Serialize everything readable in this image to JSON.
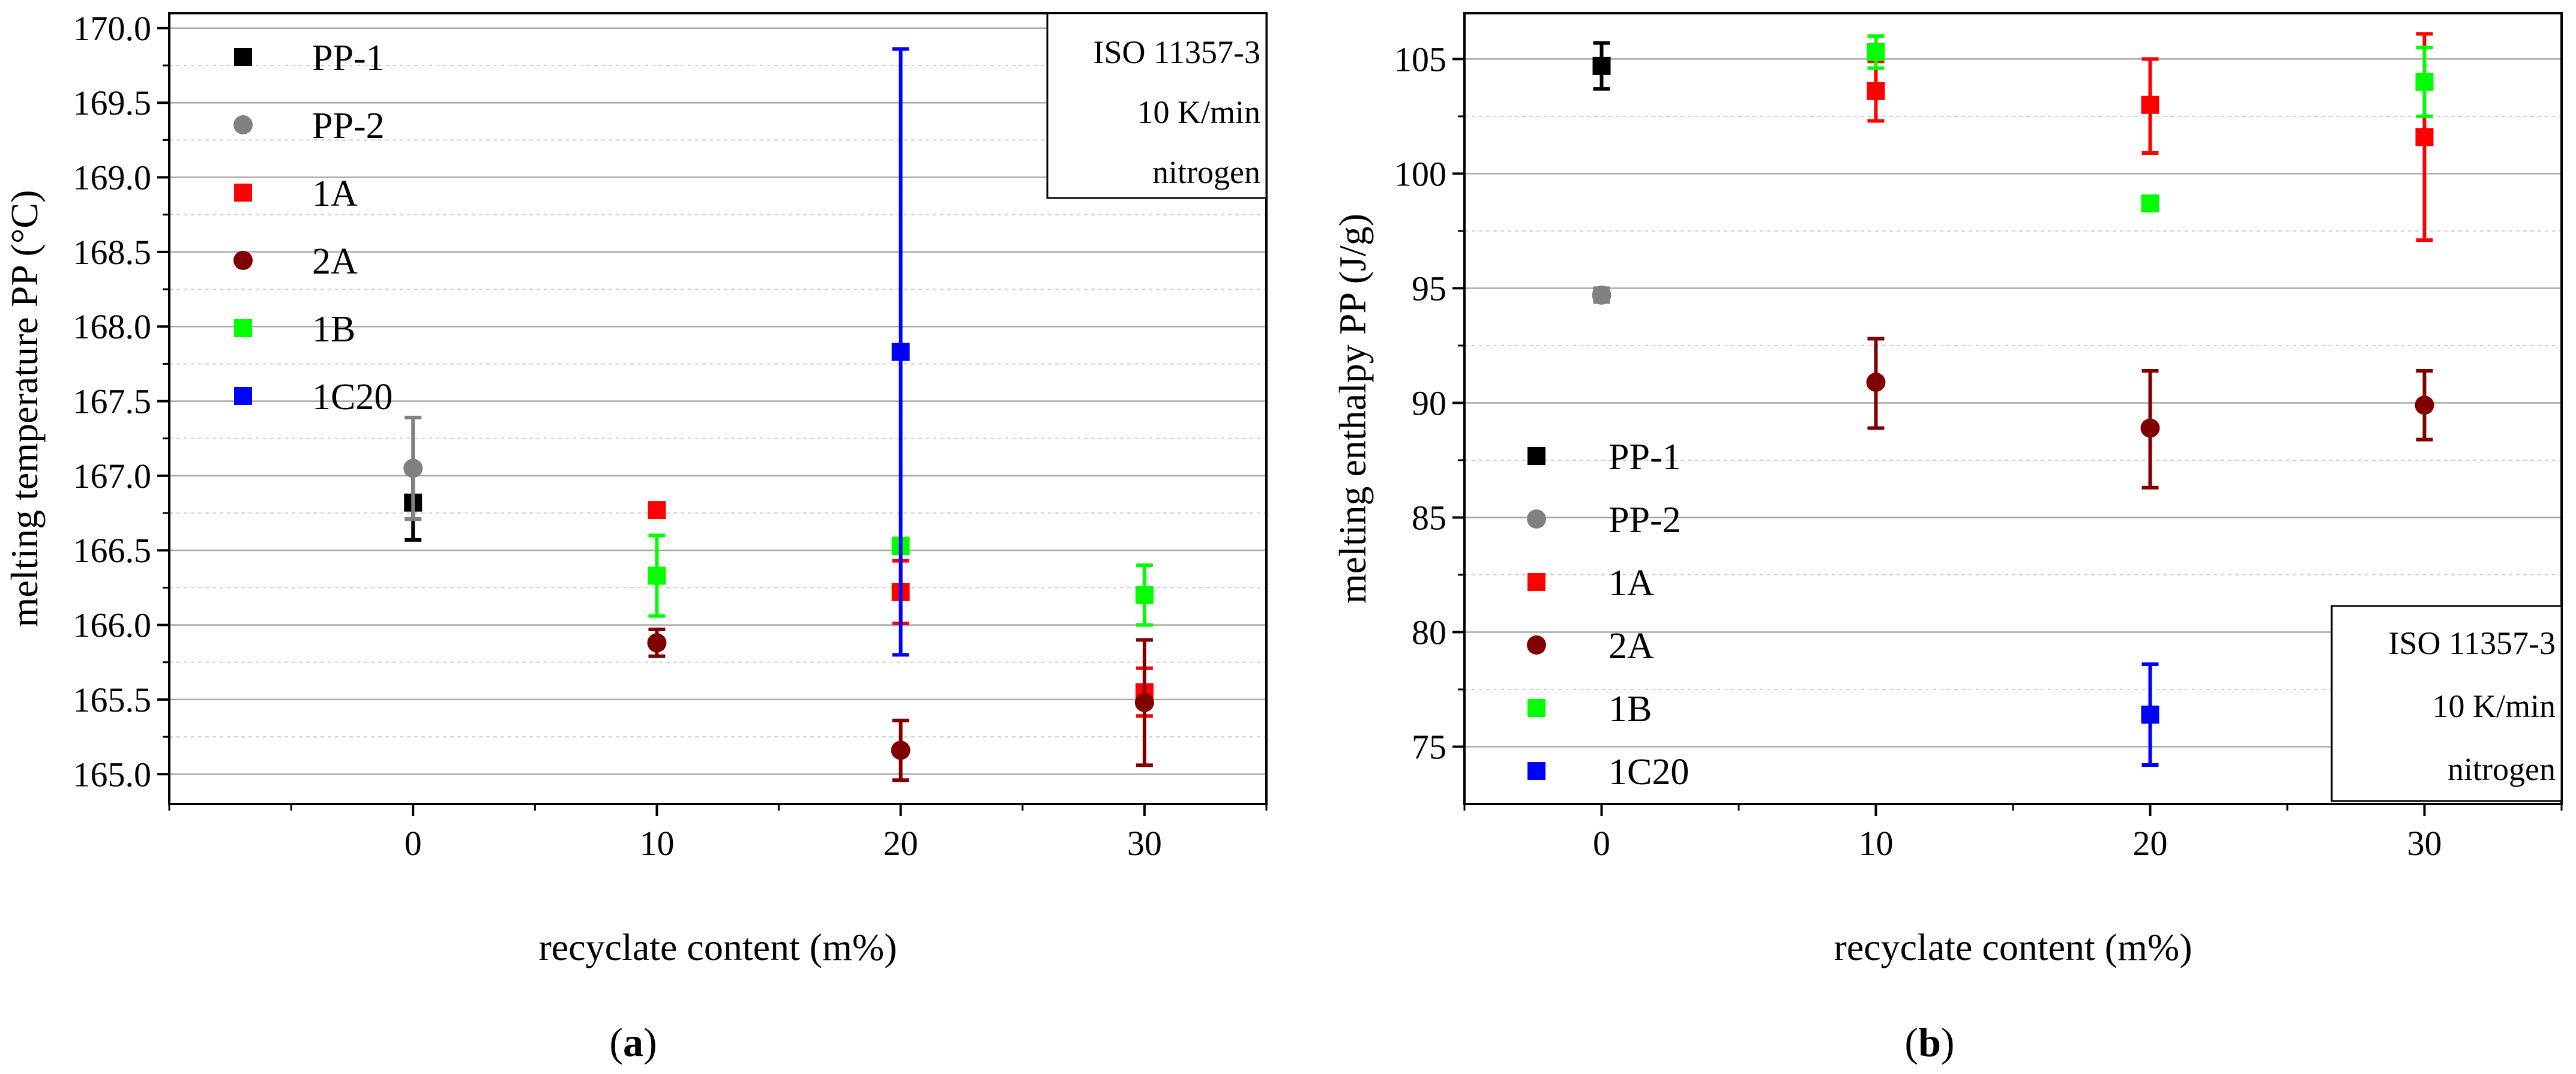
{
  "figure": {
    "captions": [
      "a",
      "b"
    ]
  },
  "chart_data": [
    {
      "type": "scatter",
      "title": "",
      "xlabel": "recyclate content (m%)",
      "ylabel": "melting temperature PP (°C)",
      "xlim": [
        -10,
        35
      ],
      "ylim": [
        164.8,
        170.1
      ],
      "xticks": [
        0,
        10,
        20,
        30
      ],
      "yticks": [
        165.0,
        165.5,
        166.0,
        166.5,
        167.0,
        167.5,
        168.0,
        168.5,
        169.0,
        169.5,
        170.0
      ],
      "ytick_labels": [
        "165.0",
        "165.5",
        "166.0",
        "166.5",
        "167.0",
        "167.5",
        "168.0",
        "168.5",
        "169.0",
        "169.5",
        "170.0"
      ],
      "grid": true,
      "legend_position": "top-left",
      "note": [
        "ISO 11357-3",
        "10 K/min",
        "nitrogen"
      ],
      "note_position": "top-right",
      "series": [
        {
          "name": "PP-1",
          "color": "#000000",
          "marker": "square",
          "points": [
            {
              "x": 0,
              "y": 166.82,
              "err_low": 166.57,
              "err_high": 167.07
            }
          ]
        },
        {
          "name": "PP-2",
          "color": "#808080",
          "marker": "circle",
          "points": [
            {
              "x": 0,
              "y": 167.05,
              "err_low": 166.71,
              "err_high": 167.39
            }
          ]
        },
        {
          "name": "1A",
          "color": "#ff0000",
          "marker": "square",
          "points": [
            {
              "x": 10,
              "y": 166.77,
              "err_low": 166.74,
              "err_high": 166.81
            },
            {
              "x": 20,
              "y": 166.22,
              "err_low": 166.01,
              "err_high": 166.43
            },
            {
              "x": 30,
              "y": 165.55,
              "err_low": 165.39,
              "err_high": 165.71
            }
          ]
        },
        {
          "name": "2A",
          "color": "#800000",
          "marker": "circle",
          "points": [
            {
              "x": 10,
              "y": 165.88,
              "err_low": 165.79,
              "err_high": 165.97
            },
            {
              "x": 20,
              "y": 165.16,
              "err_low": 164.96,
              "err_high": 165.36
            },
            {
              "x": 30,
              "y": 165.48,
              "err_low": 165.06,
              "err_high": 165.9
            }
          ]
        },
        {
          "name": "1B",
          "color": "#00ff00",
          "marker": "square",
          "points": [
            {
              "x": 10,
              "y": 166.33,
              "err_low": 166.06,
              "err_high": 166.6
            },
            {
              "x": 20,
              "y": 166.53,
              "err_low": 166.48,
              "err_high": 166.58
            },
            {
              "x": 30,
              "y": 166.2,
              "err_low": 166.0,
              "err_high": 166.4
            }
          ]
        },
        {
          "name": "1C20",
          "color": "#0000ff",
          "marker": "square",
          "points": [
            {
              "x": 20,
              "y": 167.83,
              "err_low": 165.8,
              "err_high": 169.86
            }
          ]
        }
      ]
    },
    {
      "type": "scatter",
      "title": "",
      "xlabel": "recyclate content (m%)",
      "ylabel": "melting enthalpy PP (J/g)",
      "xlim": [
        -5,
        35
      ],
      "ylim": [
        72.5,
        107
      ],
      "xticks": [
        0,
        10,
        20,
        30
      ],
      "yticks": [
        75,
        80,
        85,
        90,
        95,
        100,
        105
      ],
      "ytick_labels": [
        "75",
        "80",
        "85",
        "90",
        "95",
        "100",
        "105"
      ],
      "grid": true,
      "legend_position": "bottom-left",
      "note": [
        "ISO 11357-3",
        "10 K/min",
        "nitrogen"
      ],
      "note_position": "bottom-right",
      "series": [
        {
          "name": "PP-1",
          "color": "#000000",
          "marker": "square",
          "points": [
            {
              "x": 0,
              "y": 104.7,
              "err_low": 103.7,
              "err_high": 105.7
            }
          ]
        },
        {
          "name": "PP-2",
          "color": "#808080",
          "marker": "circle",
          "points": [
            {
              "x": 0,
              "y": 94.7,
              "err_low": 94.4,
              "err_high": 95.0
            }
          ]
        },
        {
          "name": "1A",
          "color": "#ff0000",
          "marker": "square",
          "points": [
            {
              "x": 10,
              "y": 103.6,
              "err_low": 102.3,
              "err_high": 104.9
            },
            {
              "x": 20,
              "y": 103.0,
              "err_low": 100.9,
              "err_high": 105.0
            },
            {
              "x": 30,
              "y": 101.6,
              "err_low": 97.1,
              "err_high": 106.1
            }
          ]
        },
        {
          "name": "2A",
          "color": "#800000",
          "marker": "circle",
          "points": [
            {
              "x": 10,
              "y": 90.9,
              "err_low": 88.9,
              "err_high": 92.8
            },
            {
              "x": 20,
              "y": 88.9,
              "err_low": 86.3,
              "err_high": 91.4
            },
            {
              "x": 30,
              "y": 89.9,
              "err_low": 88.4,
              "err_high": 91.4
            }
          ]
        },
        {
          "name": "1B",
          "color": "#00ff00",
          "marker": "square",
          "points": [
            {
              "x": 10,
              "y": 105.3,
              "err_low": 104.6,
              "err_high": 106.0
            },
            {
              "x": 20,
              "y": 98.7,
              "err_low": 98.5,
              "err_high": 98.9
            },
            {
              "x": 30,
              "y": 104.0,
              "err_low": 102.5,
              "err_high": 105.5
            }
          ]
        },
        {
          "name": "1C20",
          "color": "#0000ff",
          "marker": "square",
          "points": [
            {
              "x": 20,
              "y": 76.4,
              "err_low": 74.2,
              "err_high": 78.6
            }
          ]
        }
      ]
    }
  ]
}
